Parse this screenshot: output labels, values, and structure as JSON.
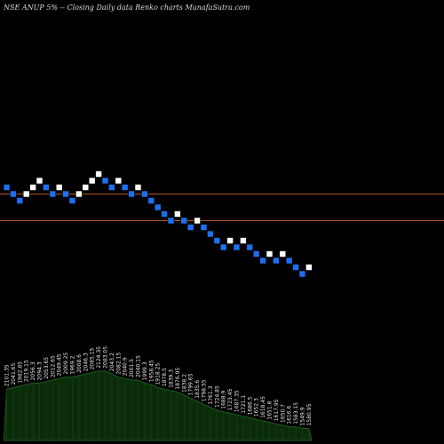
{
  "header": {
    "text": "NSE ANUP 5% -- Closing Daily data Renko charts MunafaSutra.com"
  },
  "colors": {
    "background": "#000000",
    "up_brick": "#ffffff",
    "down_brick": "#1e6ff0",
    "brick_outline": "#000000",
    "ref_line": "#b8581c",
    "volume_fill": "#0b2b0b",
    "volume_stroke": "#1f5f1f"
  },
  "chart_data": {
    "type": "renko",
    "title": "NSE ANUP 5% -- Closing Daily data Renko charts MunafaSutra.com",
    "bricks": [
      {
        "level": 0,
        "dir": "down"
      },
      {
        "level": -1,
        "dir": "down"
      },
      {
        "level": -2,
        "dir": "down"
      },
      {
        "level": -1,
        "dir": "up"
      },
      {
        "level": 0,
        "dir": "up"
      },
      {
        "level": 1,
        "dir": "up"
      },
      {
        "level": 0,
        "dir": "down"
      },
      {
        "level": -1,
        "dir": "down"
      },
      {
        "level": 0,
        "dir": "up"
      },
      {
        "level": -1,
        "dir": "down"
      },
      {
        "level": -2,
        "dir": "down"
      },
      {
        "level": -1,
        "dir": "up"
      },
      {
        "level": 0,
        "dir": "up"
      },
      {
        "level": 1,
        "dir": "up"
      },
      {
        "level": 2,
        "dir": "up"
      },
      {
        "level": 1,
        "dir": "down"
      },
      {
        "level": 0,
        "dir": "down"
      },
      {
        "level": 1,
        "dir": "up"
      },
      {
        "level": 0,
        "dir": "down"
      },
      {
        "level": -1,
        "dir": "down"
      },
      {
        "level": 0,
        "dir": "up"
      },
      {
        "level": -1,
        "dir": "down"
      },
      {
        "level": -2,
        "dir": "down"
      },
      {
        "level": -3,
        "dir": "down"
      },
      {
        "level": -4,
        "dir": "down"
      },
      {
        "level": -5,
        "dir": "down"
      },
      {
        "level": -4,
        "dir": "up"
      },
      {
        "level": -5,
        "dir": "down"
      },
      {
        "level": -6,
        "dir": "down"
      },
      {
        "level": -5,
        "dir": "up"
      },
      {
        "level": -6,
        "dir": "down"
      },
      {
        "level": -7,
        "dir": "down"
      },
      {
        "level": -8,
        "dir": "down"
      },
      {
        "level": -9,
        "dir": "down"
      },
      {
        "level": -8,
        "dir": "up"
      },
      {
        "level": -9,
        "dir": "down"
      },
      {
        "level": -8,
        "dir": "up"
      },
      {
        "level": -9,
        "dir": "down"
      },
      {
        "level": -10,
        "dir": "down"
      },
      {
        "level": -11,
        "dir": "down"
      },
      {
        "level": -10,
        "dir": "up"
      },
      {
        "level": -11,
        "dir": "down"
      },
      {
        "level": -10,
        "dir": "up"
      },
      {
        "level": -11,
        "dir": "down"
      },
      {
        "level": -12,
        "dir": "down"
      },
      {
        "level": -13,
        "dir": "down"
      },
      {
        "level": -12,
        "dir": "up"
      }
    ],
    "reference_levels": [
      -1,
      -5
    ],
    "volume": [
      34,
      35,
      36,
      37,
      38,
      38,
      39,
      40,
      41,
      42,
      42,
      43,
      44,
      45,
      46,
      46,
      44,
      42,
      41,
      40,
      40,
      38,
      37,
      35,
      34,
      33,
      32,
      30,
      28,
      26,
      24,
      22,
      20,
      19,
      18,
      17,
      16,
      15,
      14,
      13,
      12,
      11,
      10,
      9,
      9,
      8,
      8
    ],
    "brick_labels": [
      "2101.35",
      "2041.65",
      "1982.85",
      "2019.15",
      "2056.3",
      "2094.3",
      "2053.65",
      "2012.65",
      "2049.45",
      "2009.25",
      "1969.2",
      "2008.6",
      "2046.3",
      "2085.15",
      "2124.35",
      "2083.05",
      "2043.2",
      "2082.15",
      "2040.9",
      "2001.5",
      "2040.15",
      "1999.3",
      "1958.45",
      "1918.25",
      "1878.5",
      "1839.3",
      "1876.95",
      "1838.2",
      "1799.65",
      "1835.6",
      "1798.55",
      "1761.3",
      "1724.85",
      "1688.9",
      "1723.45",
      "1687.35",
      "1721.1",
      "1686.5",
      "1652.3",
      "1618.45",
      "1651.8",
      "1617.95",
      "1650.7",
      "1616.6",
      "1583.15",
      "1549.9",
      "1580.95"
    ]
  }
}
